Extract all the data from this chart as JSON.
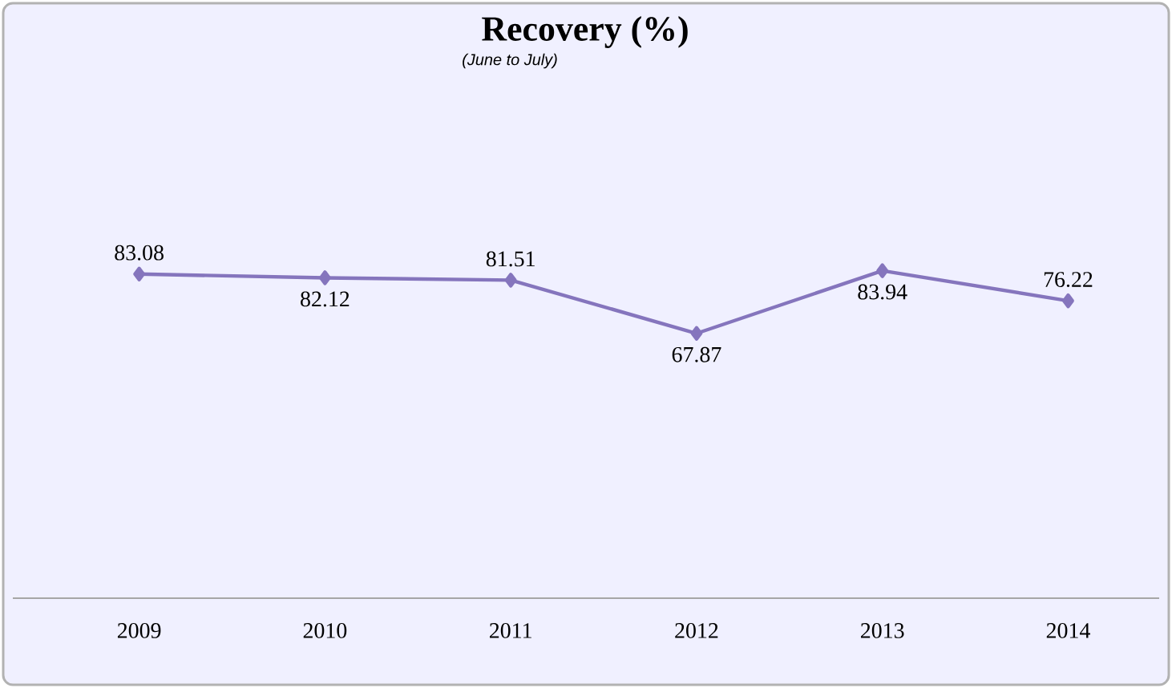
{
  "chart_data": {
    "type": "line",
    "title": "Recovery (%)",
    "subtitle": "(June to July)",
    "categories": [
      "2009",
      "2010",
      "2011",
      "2012",
      "2013",
      "2014"
    ],
    "series": [
      {
        "color": "#8575bd",
        "values": [
          83.08,
          82.12,
          81.51,
          67.87,
          83.94,
          76.22
        ]
      }
    ],
    "data_labels": true,
    "marker": "diamond",
    "line_style": "solid"
  }
}
